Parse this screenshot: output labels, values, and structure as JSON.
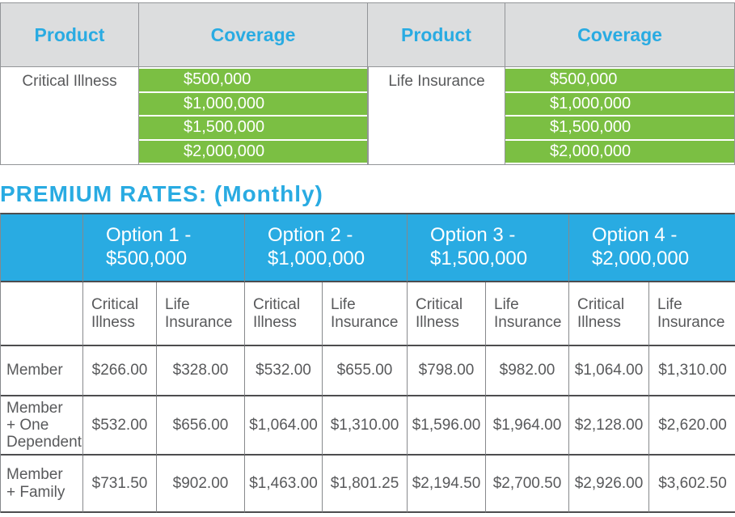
{
  "colors": {
    "cyan": "#29ABE2",
    "green": "#7BBF43",
    "header_gray": "#DCDDDE",
    "dark_text": "#58595B",
    "border_light": "#87898C",
    "border_dark": "#4D4D4F"
  },
  "coverage_table": {
    "columns": [
      {
        "product_header": "Product",
        "coverage_header": "Coverage",
        "product": "Critical Illness",
        "amounts": [
          "$500,000",
          "$1,000,000",
          "$1,500,000",
          "$2,000,000"
        ]
      },
      {
        "product_header": "Product",
        "coverage_header": "Coverage",
        "product": "Life Insurance",
        "amounts": [
          "$500,000",
          "$1,000,000",
          "$1,500,000",
          "$2,000,000"
        ]
      }
    ]
  },
  "premium_heading": "PREMIUM RATES: (Monthly)",
  "rates_table": {
    "option_headers": [
      "Option 1 -\n$500,000",
      "Option 2 -\n$1,000,000",
      "Option 3 -\n$1,500,000",
      "Option 4 -\n$2,000,000"
    ],
    "sub_headers": [
      "Critical\nIllness",
      "Life\nInsurance",
      "Critical\nIllness",
      "Life\nInsurance",
      "Critical\nIllness",
      "Life\nInsurance",
      "Critical\nIllness",
      "Life\nInsurance"
    ],
    "rows": [
      {
        "label": "Member",
        "values": [
          "$266.00",
          "$328.00",
          "$532.00",
          "$655.00",
          "$798.00",
          "$982.00",
          "$1,064.00",
          "$1,310.00"
        ]
      },
      {
        "label": "Member\n+ One\nDependent",
        "values": [
          "$532.00",
          "$656.00",
          "$1,064.00",
          "$1,310.00",
          "$1,596.00",
          "$1,964.00",
          "$2,128.00",
          "$2,620.00"
        ]
      },
      {
        "label": "Member\n+ Family",
        "values": [
          "$731.50",
          "$902.00",
          "$1,463.00",
          "$1,801.25",
          "$2,194.50",
          "$2,700.50",
          "$2,926.00",
          "$3,602.50"
        ]
      }
    ]
  }
}
